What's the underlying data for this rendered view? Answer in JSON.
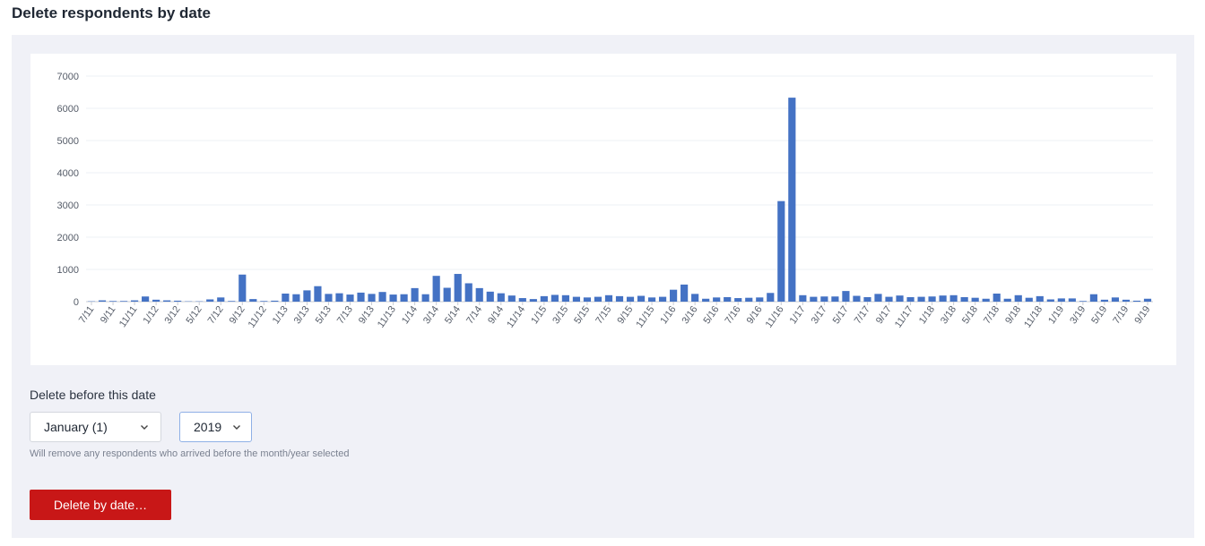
{
  "page": {
    "title": "Delete respondents by date"
  },
  "form": {
    "label": "Delete before this date",
    "month_value": "January (1)",
    "year_value": "2019",
    "help_text": "Will remove any respondents who arrived before the month/year selected",
    "delete_button": "Delete by date…"
  },
  "chart_data": {
    "type": "bar",
    "color": "#4472c4",
    "ylim": [
      0,
      7000
    ],
    "yticks": [
      0,
      1000,
      2000,
      3000,
      4000,
      5000,
      6000,
      7000
    ],
    "grid": true,
    "categories": [
      "7/11",
      "8/11",
      "9/11",
      "10/11",
      "11/11",
      "12/11",
      "1/12",
      "2/12",
      "3/12",
      "4/12",
      "5/12",
      "6/12",
      "7/12",
      "8/12",
      "9/12",
      "10/12",
      "11/12",
      "12/12",
      "1/13",
      "2/13",
      "3/13",
      "4/13",
      "5/13",
      "6/13",
      "7/13",
      "8/13",
      "9/13",
      "10/13",
      "11/13",
      "12/13",
      "1/14",
      "2/14",
      "3/14",
      "4/14",
      "5/14",
      "6/14",
      "7/14",
      "8/14",
      "9/14",
      "10/14",
      "11/14",
      "12/14",
      "1/15",
      "2/15",
      "3/15",
      "4/15",
      "5/15",
      "6/15",
      "7/15",
      "8/15",
      "9/15",
      "10/15",
      "11/15",
      "12/15",
      "1/16",
      "2/16",
      "3/16",
      "4/16",
      "5/16",
      "6/16",
      "7/16",
      "8/16",
      "9/16",
      "10/16",
      "11/16",
      "12/16",
      "1/17",
      "2/17",
      "3/17",
      "4/17",
      "5/17",
      "6/17",
      "7/17",
      "8/17",
      "9/17",
      "10/17",
      "11/17",
      "12/17",
      "1/18",
      "2/18",
      "3/18",
      "4/18",
      "5/18",
      "6/18",
      "7/18",
      "8/18",
      "9/18",
      "10/18",
      "11/18",
      "12/18",
      "1/19",
      "2/19",
      "3/19",
      "4/19",
      "5/19",
      "6/19",
      "7/19",
      "8/19",
      "9/19"
    ],
    "values": [
      10,
      40,
      20,
      20,
      40,
      160,
      60,
      40,
      30,
      10,
      10,
      70,
      130,
      20,
      840,
      80,
      20,
      30,
      250,
      230,
      350,
      480,
      240,
      260,
      220,
      280,
      240,
      300,
      220,
      230,
      420,
      230,
      800,
      430,
      860,
      570,
      420,
      310,
      260,
      190,
      110,
      80,
      170,
      210,
      200,
      150,
      130,
      150,
      200,
      170,
      150,
      180,
      130,
      150,
      370,
      530,
      240,
      90,
      130,
      140,
      110,
      120,
      130,
      270,
      3120,
      6330,
      200,
      150,
      160,
      160,
      330,
      180,
      140,
      240,
      150,
      190,
      140,
      150,
      160,
      190,
      200,
      140,
      120,
      90,
      250,
      90,
      200,
      120,
      170,
      70,
      100,
      100,
      20,
      230,
      60,
      130,
      60,
      30,
      90
    ],
    "tick_labels": [
      "7/11",
      "9/11",
      "11/11",
      "1/12",
      "3/12",
      "5/12",
      "7/12",
      "9/12",
      "11/12",
      "1/13",
      "3/13",
      "5/13",
      "7/13",
      "9/13",
      "11/13",
      "1/14",
      "3/14",
      "5/14",
      "7/14",
      "9/14",
      "11/14",
      "1/15",
      "3/15",
      "5/15",
      "7/15",
      "9/15",
      "11/15",
      "1/16",
      "3/16",
      "5/16",
      "7/16",
      "9/16",
      "11/16",
      "1/17",
      "3/17",
      "5/17",
      "7/17",
      "9/17",
      "11/17",
      "1/18",
      "3/18",
      "5/18",
      "7/18",
      "9/18",
      "11/18",
      "1/19",
      "3/19",
      "5/19",
      "7/19",
      "9/19"
    ]
  }
}
